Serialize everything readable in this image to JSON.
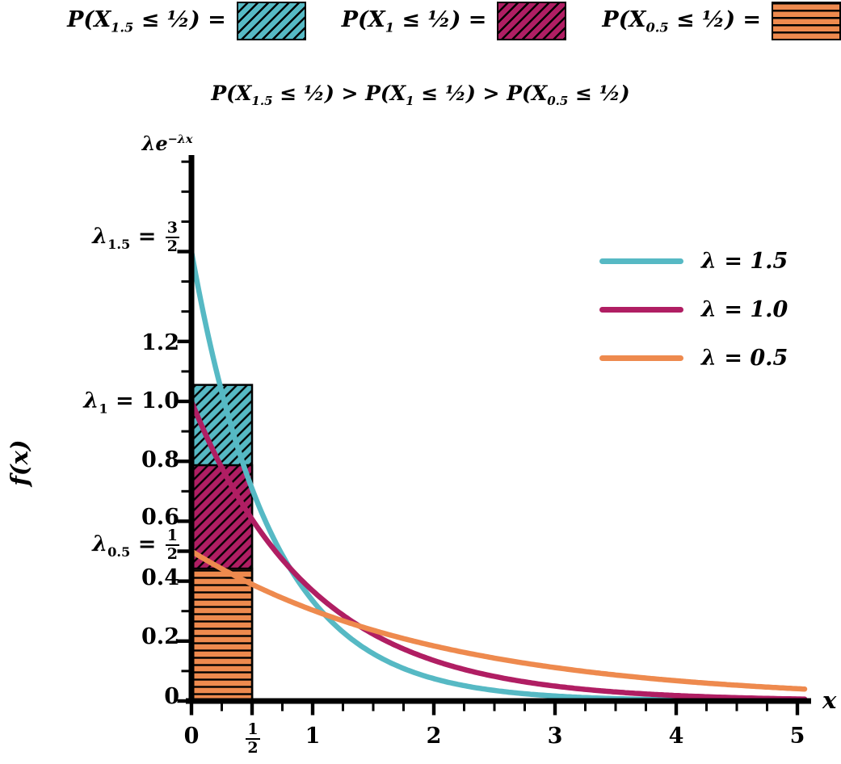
{
  "colors": {
    "cyan": "#56b9c4",
    "magenta": "#b01e63",
    "orange": "#ee8a4e",
    "axis": "#000000",
    "background": "#ffffff"
  },
  "top_legend": {
    "items": [
      {
        "pre": "P(X",
        "sub": "1.5",
        "post": " ≤ ½) =",
        "color": "#56b9c4",
        "hatch": "diagonal"
      },
      {
        "pre": "P(X",
        "sub": "1",
        "post": " ≤ ½) =",
        "color": "#b01e63",
        "hatch": "diagonal"
      },
      {
        "pre": "P(X",
        "sub": "0.5",
        "post": " ≤ ½) =",
        "color": "#ee8a4e",
        "hatch": "horizontal"
      }
    ]
  },
  "title": {
    "p1": "P(X",
    "s1": "1.5",
    "p2": " ≤ ½) > P(X",
    "s2": "1",
    "p3": " ≤ ½) > P(X",
    "s3": "0.5",
    "p4": " ≤ ½)"
  },
  "legend": {
    "items": [
      {
        "sym": "λ",
        "val": " = 1.5",
        "color": "#56b9c4"
      },
      {
        "sym": "λ",
        "val": " = 1.0",
        "color": "#b01e63"
      },
      {
        "sym": "λ",
        "val": " = 0.5",
        "color": "#ee8a4e"
      }
    ]
  },
  "axes": {
    "y_axis_label": "f(x)",
    "x_axis_label": "x",
    "y_annotation": {
      "base": "λe",
      "sup": "−λx"
    },
    "y_ticks": {
      "y15": {
        "sym": "λ",
        "sub": "1.5",
        "eq": " = ",
        "num": "3",
        "den": "2"
      },
      "y12": "1.2",
      "y10": {
        "sym": "λ",
        "sub": "1",
        "eq": " = ",
        "val": "1.0"
      },
      "y08": "0.8",
      "y06": "0.6",
      "y05": {
        "sym": "λ",
        "sub": "0.5",
        "eq": " = ",
        "num": "1",
        "den": "2"
      },
      "y04": "0.4",
      "y02": "0.2",
      "y00": "0"
    },
    "x_ticks": {
      "x0": "0",
      "xhalf": {
        "num": "1",
        "den": "2"
      },
      "x1": "1",
      "x2": "2",
      "x3": "3",
      "x4": "4",
      "x5": "5"
    }
  },
  "chart_data": {
    "type": "line",
    "title": "P(X₁.₅ ≤ ½) > P(X₁ ≤ ½) > P(X₀.₅ ≤ ½)",
    "function": "f(x) = λ·exp(−λ·x)",
    "xlabel": "x",
    "ylabel": "f(x)",
    "xlim": [
      0,
      5.1
    ],
    "ylim": [
      0,
      1.82
    ],
    "grid": false,
    "x_tick_values": [
      0,
      0.5,
      1,
      2,
      3,
      4,
      5
    ],
    "x_tick_labels": [
      "0",
      "1/2",
      "1",
      "2",
      "3",
      "4",
      "5"
    ],
    "y_tick_values": [
      0,
      0.2,
      0.4,
      0.5,
      0.6,
      0.8,
      1.0,
      1.2,
      1.5
    ],
    "y_tick_labels": [
      "0",
      "0.2",
      "0.4",
      "λ₀.₅ = 1/2",
      "0.6",
      "0.8",
      "λ₁ = 1.0",
      "1.2",
      "λ₁.₅ = 3/2"
    ],
    "minor_x_step": 0.25,
    "minor_y_step": 0.1,
    "series": [
      {
        "name": "λ = 1.5",
        "lambda": 1.5,
        "color": "#56b9c4",
        "y_intercept": 1.5,
        "p_x_leq_half": 0.528
      },
      {
        "name": "λ = 1.0",
        "lambda": 1.0,
        "color": "#b01e63",
        "y_intercept": 1.0,
        "p_x_leq_half": 0.393
      },
      {
        "name": "λ = 0.5",
        "lambda": 0.5,
        "color": "#ee8a4e",
        "y_intercept": 0.5,
        "p_x_leq_half": 0.221
      }
    ],
    "shaded_rectangles": [
      {
        "name": "P(X₁.₅ ≤ ½)",
        "x": [
          0,
          0.5
        ],
        "y": [
          0,
          1.055
        ],
        "area": 0.528,
        "color": "#56b9c4",
        "hatch": "diagonal"
      },
      {
        "name": "P(X₁ ≤ ½)",
        "x": [
          0,
          0.5
        ],
        "y": [
          0,
          0.787
        ],
        "area": 0.393,
        "color": "#b01e63",
        "hatch": "diagonal"
      },
      {
        "name": "P(X₀.₅ ≤ ½)",
        "x": [
          0,
          0.5
        ],
        "y": [
          0,
          0.442
        ],
        "area": 0.221,
        "color": "#ee8a4e",
        "hatch": "horizontal"
      }
    ],
    "legend_entries": [
      "λ = 1.5",
      "λ = 1.0",
      "λ = 0.5"
    ],
    "legend_position": "center-right"
  }
}
